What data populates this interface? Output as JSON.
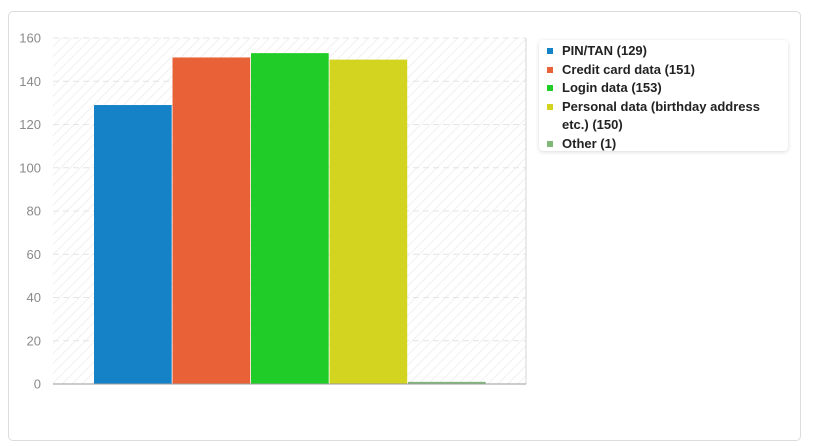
{
  "chart_data": {
    "type": "bar",
    "categories": [
      "PIN/TAN",
      "Credit card data",
      "Login data",
      "Personal data (birthday address etc.)",
      "Other"
    ],
    "values": [
      129,
      151,
      153,
      150,
      1
    ],
    "colors": [
      "#1582c8",
      "#e96237",
      "#20cc27",
      "#d3d41f",
      "#80b87a"
    ],
    "ylim": [
      0,
      160
    ],
    "yticks": [
      "0",
      "20",
      "40",
      "60",
      "80",
      "100",
      "120",
      "140",
      "160"
    ],
    "grid": true,
    "legend_placement": "right",
    "legend": [
      {
        "label": "PIN/TAN (129)",
        "color": "#1582c8"
      },
      {
        "label": "Credit card data (151)",
        "color": "#e96237"
      },
      {
        "label": "Login data (153)",
        "color": "#20cc27"
      },
      {
        "label": "Personal data (birthday address etc.) (150)",
        "color": "#d3d41f"
      },
      {
        "label": "Other (1)",
        "color": "#80b87a"
      }
    ]
  }
}
